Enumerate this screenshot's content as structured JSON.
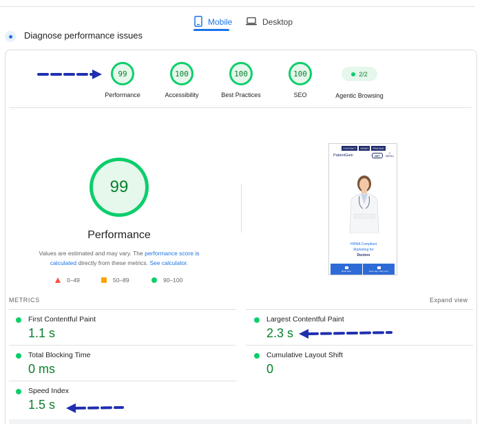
{
  "tabs": [
    {
      "label": "Mobile",
      "icon": "smartphone-icon",
      "active": true
    },
    {
      "label": "Desktop",
      "icon": "laptop-icon",
      "active": false
    }
  ],
  "header": {
    "title": "Diagnose performance issues"
  },
  "scores": [
    {
      "label": "Performance",
      "value": "99"
    },
    {
      "label": "Accessibility",
      "value": "100"
    },
    {
      "label": "Best Practices",
      "value": "100"
    },
    {
      "label": "SEO",
      "value": "100"
    }
  ],
  "agentic": {
    "label": "Agentic Browsing",
    "value": "2/2"
  },
  "main_gauge": {
    "value": "99",
    "label": "Performance"
  },
  "note": {
    "text1": "Values are estimated and may vary. The ",
    "link1": "performance score is calculated",
    "text2": " directly from these metrics. ",
    "link2": "See calculator."
  },
  "legend": [
    {
      "range": "0–49",
      "color": "#ff4e42"
    },
    {
      "range": "50–89",
      "color": "#ffa400"
    },
    {
      "range": "90–100",
      "color": "#0cce6b"
    }
  ],
  "screenshot": {
    "nav": [
      "CONTACT",
      "DEMO",
      "PRICING"
    ],
    "logo": "PatientGain",
    "get_button": "GET",
    "menu": "MENU",
    "headline1": "HIPAA Compliant",
    "headline2": "Marketing for",
    "headline3": "Doctors",
    "bar_left": "Book Now",
    "bar_right": "How may I help you?"
  },
  "metrics": {
    "heading": "METRICS",
    "expand": "Expand view",
    "items": [
      {
        "name": "First Contentful Paint",
        "value": "1.1 s"
      },
      {
        "name": "Largest Contentful Paint",
        "value": "2.3 s"
      },
      {
        "name": "Total Blocking Time",
        "value": "0 ms"
      },
      {
        "name": "Cumulative Layout Shift",
        "value": "0"
      },
      {
        "name": "Speed Index",
        "value": "1.5 s"
      }
    ]
  },
  "colors": {
    "accent": "#1a73e8",
    "good": "#0cce6b",
    "good_text": "#08802c",
    "annotation": "#1f2fb0"
  }
}
